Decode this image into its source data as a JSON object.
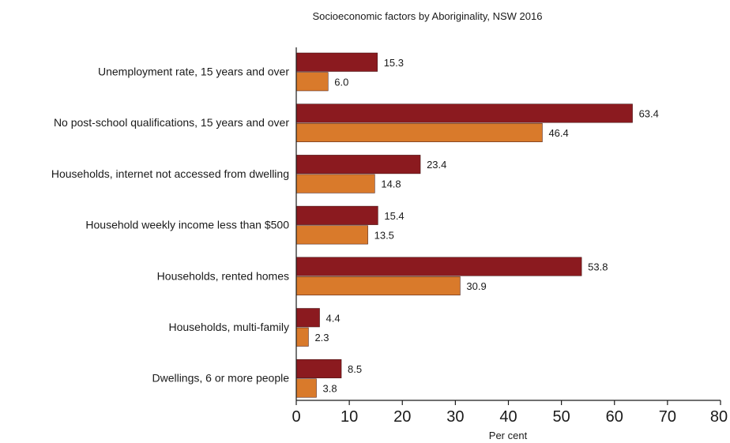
{
  "chart_data": {
    "type": "bar",
    "orientation": "horizontal",
    "title": "Socioeconomic factors by Aboriginality, NSW 2016",
    "xlabel": "Per cent",
    "ylabel": "",
    "xlim": [
      0,
      80
    ],
    "xticks": [
      0,
      10,
      20,
      30,
      40,
      50,
      60,
      70,
      80
    ],
    "grid": false,
    "legend": "none",
    "categories": [
      "Unemployment rate, 15 years and over",
      "No post-school qualifications, 15 years and over",
      "Households, internet not accessed from dwelling",
      "Household weekly income less than $500",
      "Households, rented homes",
      "Households, multi-family",
      "Dwellings, 6 or more people"
    ],
    "series": [
      {
        "color": "#8b1a1f",
        "values": [
          15.3,
          63.4,
          23.4,
          15.4,
          53.8,
          4.4,
          8.5
        ]
      },
      {
        "color": "#d97a2b",
        "values": [
          6.0,
          46.4,
          14.8,
          13.5,
          30.9,
          2.3,
          3.8
        ]
      }
    ]
  }
}
